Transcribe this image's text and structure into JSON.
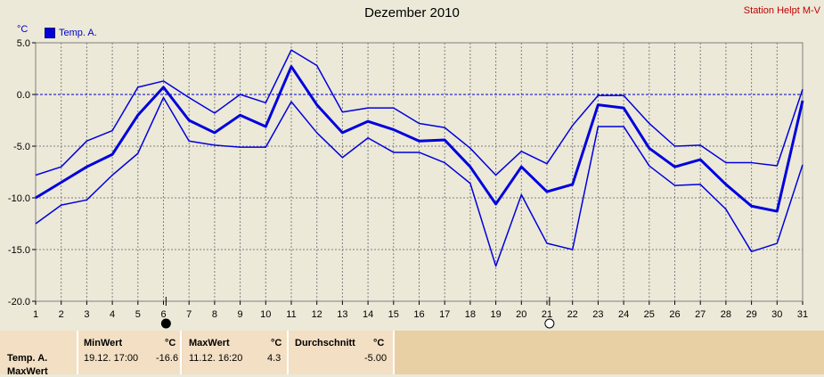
{
  "header": {
    "title": "Dezember 2010",
    "station": "Station Helpt M-V",
    "unit": "°C"
  },
  "colors": {
    "series": "#0000dd",
    "zero_line": "#0000c8",
    "grid": "#808080",
    "background": "#ece9d8",
    "stats_bg": "#f3dfc3"
  },
  "chart_data": {
    "type": "line",
    "title": "Dezember 2010",
    "ylabel": "°C",
    "ylim": [
      -20,
      5
    ],
    "y_ticks": [
      "5.0",
      "0.0",
      "-5.0",
      "-10.0",
      "-15.0",
      "-20.0"
    ],
    "x": [
      1,
      2,
      3,
      4,
      5,
      6,
      7,
      8,
      9,
      10,
      11,
      12,
      13,
      14,
      15,
      16,
      17,
      18,
      19,
      20,
      21,
      22,
      23,
      24,
      25,
      26,
      27,
      28,
      29,
      30,
      31
    ],
    "legend": "Temp. A.",
    "legend_position": "top-left",
    "grid": true,
    "moon_phases": [
      {
        "day": 6,
        "icon": "full-moon-icon"
      },
      {
        "day": 21,
        "icon": "new-moon-icon"
      }
    ],
    "series": [
      {
        "name": "Max",
        "width": "thin",
        "values": [
          -7.8,
          -7.0,
          -4.5,
          -3.5,
          0.7,
          1.3,
          -0.3,
          -1.8,
          0.0,
          -0.8,
          4.3,
          2.8,
          -1.7,
          -1.3,
          -1.3,
          -2.8,
          -3.2,
          -5.2,
          -7.8,
          -5.5,
          -6.7,
          -3.0,
          -0.1,
          -0.1,
          -2.8,
          -5.0,
          -4.9,
          -6.6,
          -6.6,
          -6.9,
          0.5
        ]
      },
      {
        "name": "Temp. A.",
        "width": "thick",
        "values": [
          -10.0,
          -8.5,
          -7.0,
          -5.8,
          -2.0,
          0.7,
          -2.5,
          -3.7,
          -2.0,
          -3.1,
          2.7,
          -1.0,
          -3.7,
          -2.6,
          -3.4,
          -4.5,
          -4.4,
          -7.0,
          -10.6,
          -7.0,
          -9.4,
          -8.7,
          -1.0,
          -1.3,
          -5.2,
          -7.0,
          -6.3,
          -8.7,
          -10.8,
          -11.3,
          -0.6
        ]
      },
      {
        "name": "Min",
        "width": "thin",
        "values": [
          -12.5,
          -10.7,
          -10.2,
          -7.8,
          -5.7,
          -0.3,
          -4.5,
          -4.9,
          -5.1,
          -5.1,
          -0.7,
          -3.7,
          -6.1,
          -4.2,
          -5.6,
          -5.6,
          -6.6,
          -8.6,
          -16.6,
          -9.7,
          -14.4,
          -15.0,
          -3.1,
          -3.1,
          -6.9,
          -8.8,
          -8.7,
          -11.1,
          -15.2,
          -14.4,
          -6.8
        ]
      }
    ]
  },
  "stats": {
    "row_label": "Temp. A.",
    "row_label_2": "MaxWert",
    "min": {
      "header": "MinWert",
      "unit": "°C",
      "time": "19.12.  17:00",
      "value": "-16.6"
    },
    "max": {
      "header": "MaxWert",
      "unit": "°C",
      "time": "11.12.  16:20",
      "value": "4.3"
    },
    "avg": {
      "header": "Durchschnitt",
      "unit": "°C",
      "value": "-5.00"
    }
  }
}
